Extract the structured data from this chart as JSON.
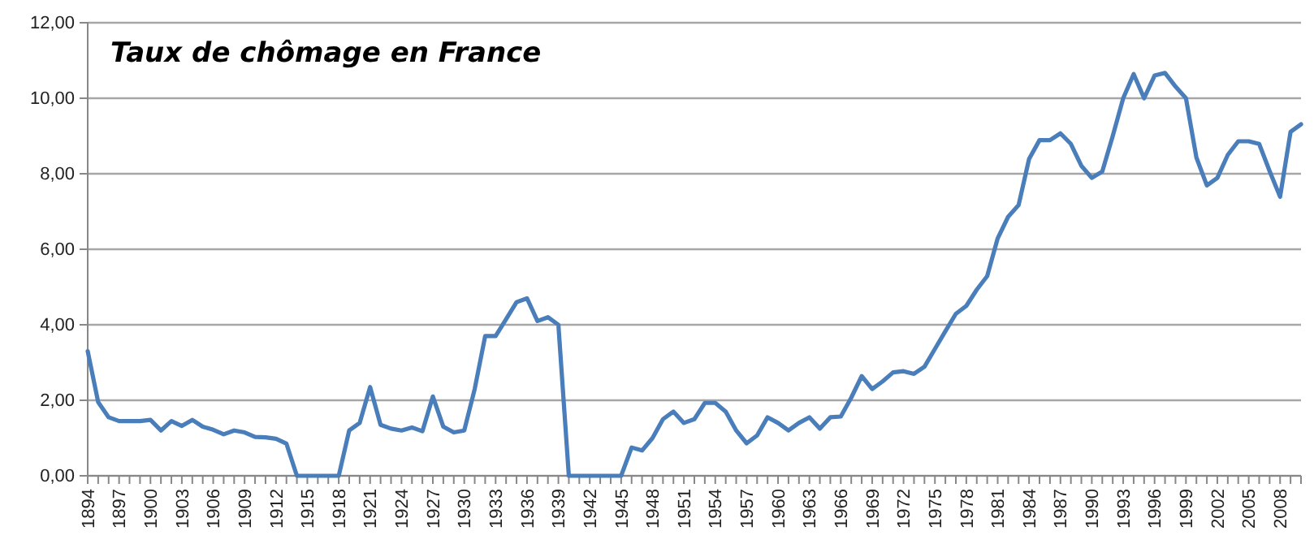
{
  "chart_data": {
    "type": "line",
    "title": "Taux de chômage en France",
    "categories": [
      "1894",
      null,
      null,
      "1897",
      null,
      null,
      "1900",
      null,
      null,
      "1903",
      null,
      null,
      "1906",
      null,
      null,
      "1909",
      null,
      null,
      "1912",
      null,
      null,
      "1915",
      null,
      null,
      "1918",
      null,
      null,
      "1921",
      null,
      null,
      "1924",
      null,
      null,
      "1927",
      null,
      null,
      "1930",
      null,
      null,
      "1933",
      null,
      null,
      "1936",
      null,
      null,
      "1939",
      null,
      null,
      "1942",
      null,
      null,
      "1945",
      null,
      null,
      "1948",
      null,
      null,
      "1951",
      null,
      null,
      "1954",
      null,
      null,
      "1957",
      null,
      null,
      "1960",
      null,
      null,
      "1963",
      null,
      null,
      "1966",
      null,
      null,
      "1969",
      null,
      null,
      "1972",
      null,
      null,
      "1975",
      null,
      null,
      "1978",
      null,
      null,
      "1981",
      null,
      null,
      "1984",
      null,
      null,
      "1987",
      null,
      null,
      "1990",
      null,
      null,
      "1993",
      null,
      null,
      "1996",
      null,
      null,
      "1999",
      null,
      null,
      "2002",
      null,
      null,
      "2005",
      null,
      null,
      "2008",
      null,
      null
    ],
    "series": [
      {
        "color": "#4a7ebb",
        "values": [
          3.3,
          1.95,
          1.55,
          1.45,
          1.45,
          1.45,
          1.48,
          1.2,
          1.45,
          1.32,
          1.48,
          1.3,
          1.22,
          1.1,
          1.2,
          1.15,
          1.03,
          1.02,
          0.98,
          0.85,
          0,
          0,
          0,
          0,
          0,
          1.2,
          1.4,
          2.35,
          1.35,
          1.25,
          1.2,
          1.28,
          1.18,
          2.1,
          1.3,
          1.15,
          1.2,
          2.3,
          3.7,
          3.7,
          4.15,
          4.6,
          4.7,
          4.1,
          4.2,
          4.0,
          0,
          0,
          0,
          0,
          0,
          0,
          0.75,
          0.67,
          1.0,
          1.5,
          1.7,
          1.4,
          1.5,
          1.93,
          1.93,
          1.7,
          1.2,
          0.86,
          1.07,
          1.55,
          1.4,
          1.2,
          1.4,
          1.55,
          1.25,
          1.55,
          1.57,
          2.07,
          2.64,
          2.3,
          2.5,
          2.74,
          2.77,
          2.7,
          2.89,
          3.36,
          3.83,
          4.29,
          4.5,
          4.93,
          5.29,
          6.29,
          6.86,
          7.17,
          8.39,
          8.89,
          8.89,
          9.07,
          8.79,
          8.21,
          7.89,
          8.06,
          9.0,
          10.0,
          10.64,
          10.0,
          10.6,
          10.67,
          10.31,
          10.0,
          8.43,
          7.69,
          7.89,
          8.5,
          8.86,
          8.86,
          8.79,
          8.07,
          7.39,
          9.11,
          9.31
        ]
      }
    ],
    "ylim": [
      0,
      12
    ],
    "yticks": [
      {
        "value": 0,
        "label": "0,00"
      },
      {
        "value": 2,
        "label": "2,00"
      },
      {
        "value": 4,
        "label": "4,00"
      },
      {
        "value": 6,
        "label": "6,00"
      },
      {
        "value": 8,
        "label": "8,00"
      },
      {
        "value": 10,
        "label": "10,00"
      },
      {
        "value": 12,
        "label": "12,00"
      }
    ],
    "grid": "y",
    "marker": "none",
    "line_style": "solid"
  }
}
